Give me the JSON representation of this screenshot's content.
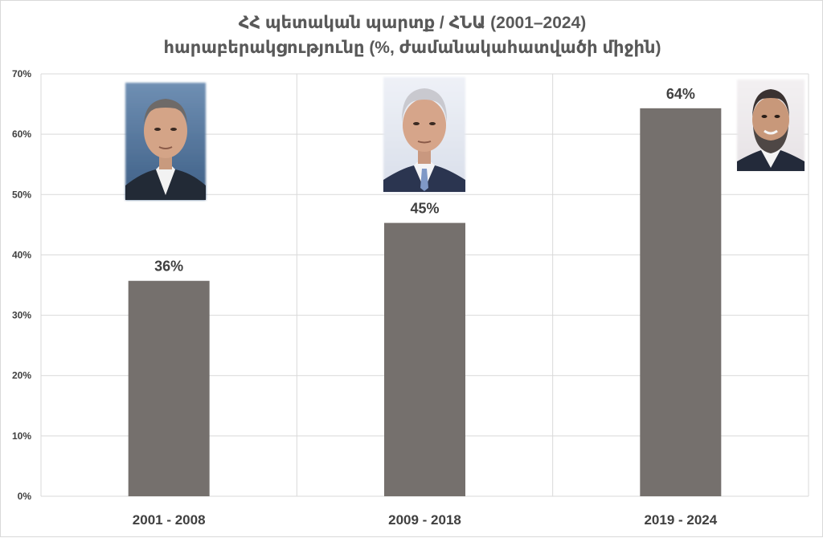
{
  "chart_data": {
    "type": "bar",
    "title": "ՀՀ պետական պարտք / ՀՆԱ (2001–2024)",
    "subtitle": "հարաբերակցությունը (%, ժամանակահատվածի միջին)",
    "categories": [
      "2001 - 2008",
      "2009 - 2018",
      "2019 - 2024"
    ],
    "values": [
      35.7,
      45.3,
      64.3
    ],
    "value_labels": [
      "36%",
      "45%",
      "64%"
    ],
    "ylim": [
      0,
      70
    ],
    "yticks": [
      "0%",
      "10%",
      "20%",
      "30%",
      "40%",
      "50%",
      "60%",
      "70%"
    ],
    "xlabel": "",
    "ylabel": "",
    "grid": true,
    "legend": "none",
    "colors": {
      "bar": "#75706d",
      "grid": "#d9d9d9",
      "text": "#404040",
      "title": "#595959"
    },
    "portraits": [
      {
        "icon": "man-portrait-gray-hair-dark-suit",
        "category": "2001 - 2008"
      },
      {
        "icon": "man-portrait-silver-hair-blue-tie",
        "category": "2009 - 2018"
      },
      {
        "icon": "man-portrait-beard-smiling",
        "category": "2019 - 2024"
      }
    ]
  }
}
